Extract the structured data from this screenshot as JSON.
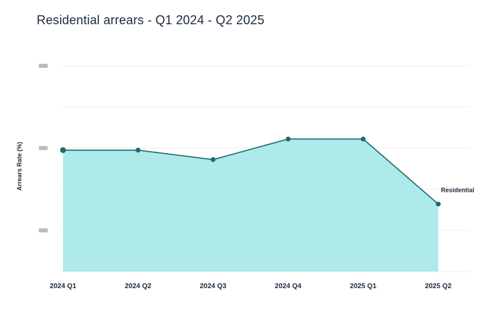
{
  "chart_data": {
    "type": "area",
    "title": "Residential arrears - Q1 2024 - Q2 2025",
    "ylabel": "Arrears Rate (%)",
    "xlabel": "",
    "categories": [
      "2024 Q1",
      "2024 Q2",
      "2024 Q3",
      "2024 Q4",
      "2025 Q1",
      "2025 Q2"
    ],
    "series": [
      {
        "name": "Residential",
        "values": [
          2.95,
          2.95,
          2.72,
          3.22,
          3.22,
          1.64
        ]
      }
    ],
    "ylim": [
      0,
      5
    ],
    "y_tick_labels_obscured": true,
    "grid": true,
    "colors": {
      "fill": "#aeeaea",
      "line": "#1f6b68",
      "marker": "#1f6b68",
      "grid": "#eeeeee",
      "text": "#1b2a3a"
    }
  }
}
